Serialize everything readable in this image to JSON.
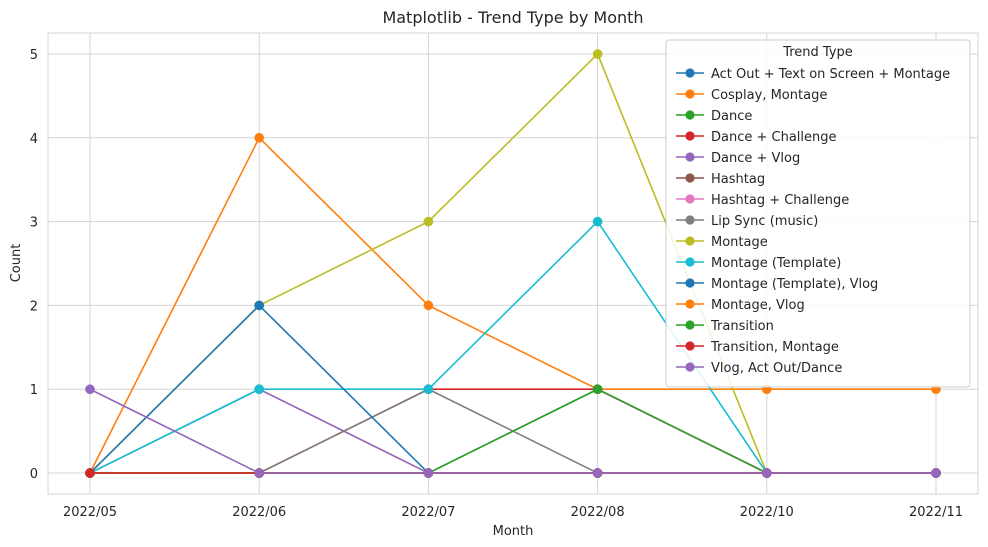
{
  "chart_data": {
    "type": "line",
    "title": "Matplotlib - Trend Type by Month",
    "xlabel": "Month",
    "ylabel": "Count",
    "categories": [
      "2022/05",
      "2022/06",
      "2022/07",
      "2022/08",
      "2022/10",
      "2022/11"
    ],
    "ylim": [
      -0.25,
      5.25
    ],
    "yticks": [
      0,
      1,
      2,
      3,
      4,
      5
    ],
    "grid": true,
    "legend_title": "Trend Type",
    "legend_position": "upper right",
    "series": [
      {
        "name": "Act Out + Text on Screen + Montage",
        "color": "#1f77b4",
        "values": [
          0,
          0,
          0,
          0,
          0,
          0
        ]
      },
      {
        "name": "Cosplay, Montage",
        "color": "#ff7f0e",
        "values": [
          0,
          4,
          2,
          1,
          1,
          1
        ]
      },
      {
        "name": "Dance",
        "color": "#2ca02c",
        "values": [
          0,
          0,
          0,
          1,
          0,
          0
        ]
      },
      {
        "name": "Dance + Challenge",
        "color": "#d62728",
        "values": [
          0,
          0,
          1,
          1,
          0,
          0
        ]
      },
      {
        "name": "Dance + Vlog",
        "color": "#9467bd",
        "values": [
          0,
          1,
          0,
          0,
          0,
          0
        ]
      },
      {
        "name": "Hashtag",
        "color": "#8c564b",
        "values": [
          0,
          0,
          0,
          0,
          0,
          0
        ]
      },
      {
        "name": "Hashtag + Challenge",
        "color": "#e377c2",
        "values": [
          0,
          0,
          0,
          0,
          0,
          0
        ]
      },
      {
        "name": "Lip Sync (music)",
        "color": "#7f7f7f",
        "values": [
          0,
          0,
          1,
          0,
          0,
          0
        ]
      },
      {
        "name": "Montage",
        "color": "#bcbd22",
        "values": [
          0,
          2,
          3,
          5,
          0,
          0
        ]
      },
      {
        "name": "Montage (Template)",
        "color": "#17becf",
        "values": [
          0,
          1,
          1,
          3,
          0,
          0
        ]
      },
      {
        "name": "Montage (Template), Vlog",
        "color": "#1f77b4",
        "values": [
          0,
          2,
          0,
          0,
          0,
          0
        ]
      },
      {
        "name": "Montage, Vlog",
        "color": "#ff7f0e",
        "values": [
          0,
          0,
          0,
          0,
          0,
          0
        ]
      },
      {
        "name": "Transition",
        "color": "#2ca02c",
        "values": [
          0,
          0,
          0,
          1,
          0,
          0
        ]
      },
      {
        "name": "Transition, Montage",
        "color": "#d62728",
        "values": [
          0,
          0,
          0,
          0,
          0,
          0
        ]
      },
      {
        "name": "Vlog, Act Out/Dance",
        "color": "#9467bd",
        "values": [
          1,
          0,
          0,
          0,
          0,
          0
        ]
      }
    ]
  }
}
